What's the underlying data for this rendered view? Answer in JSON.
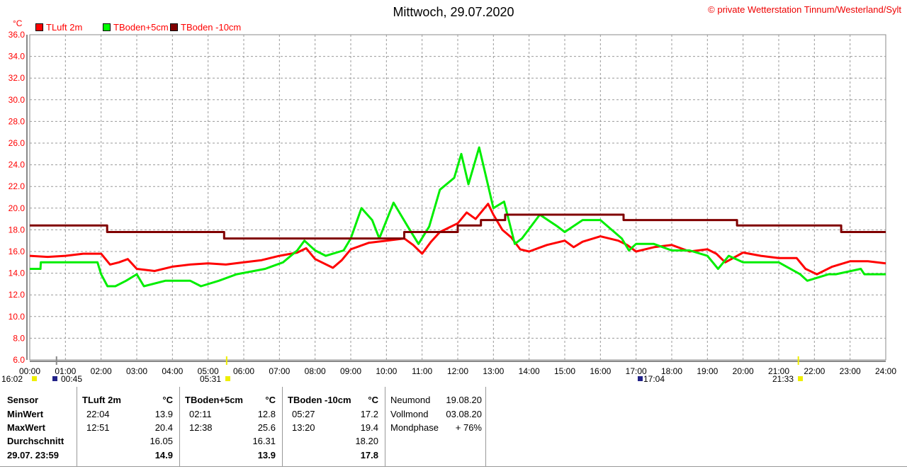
{
  "header": {
    "title": "Mittwoch, 29.07.2020",
    "copyright": "© private Wetterstation Tinnum/Westerland/Sylt",
    "unit": "°C"
  },
  "chart_data": {
    "type": "line",
    "title": "Mittwoch, 29.07.2020",
    "ylabel": "°C",
    "ylim": [
      6,
      36
    ],
    "yticks": [
      "6.0",
      "8.0",
      "10.0",
      "12.0",
      "14.0",
      "16.0",
      "18.0",
      "20.0",
      "22.0",
      "24.0",
      "26.0",
      "28.0",
      "30.0",
      "32.0",
      "34.0",
      "36.0"
    ],
    "xlim": [
      0,
      24
    ],
    "xticks": [
      "00:00",
      "01:00",
      "02:00",
      "03:00",
      "04:00",
      "05:00",
      "06:00",
      "07:00",
      "08:00",
      "09:00",
      "10:00",
      "11:00",
      "12:00",
      "13:00",
      "14:00",
      "15:00",
      "16:00",
      "17:00",
      "18:00",
      "19:00",
      "20:00",
      "21:00",
      "22:00",
      "23:00",
      "24:00"
    ],
    "grid": true,
    "legend": "top-left",
    "series": [
      {
        "name": "TLuft 2m",
        "color": "#ff0000",
        "x": [
          0,
          0.5,
          1,
          1.5,
          2,
          2.25,
          2.5,
          2.75,
          3,
          3.5,
          4,
          4.5,
          5,
          5.5,
          6,
          6.5,
          7,
          7.5,
          7.75,
          8,
          8.5,
          8.75,
          9,
          9.5,
          10,
          10.5,
          10.75,
          11,
          11.25,
          11.5,
          12,
          12.25,
          12.5,
          12.85,
          13,
          13.25,
          13.5,
          13.75,
          14,
          14.5,
          15,
          15.25,
          15.5,
          16,
          16.5,
          16.75,
          17,
          17.5,
          18,
          18.5,
          19,
          19.25,
          19.5,
          20,
          20.5,
          21,
          21.5,
          21.75,
          22.07,
          22.5,
          23,
          23.5,
          24
        ],
        "y": [
          15.6,
          15.5,
          15.6,
          15.8,
          15.8,
          14.8,
          15.0,
          15.3,
          14.4,
          14.2,
          14.6,
          14.8,
          14.9,
          14.8,
          15.0,
          15.2,
          15.6,
          15.9,
          16.3,
          15.3,
          14.5,
          15.2,
          16.2,
          16.8,
          17.0,
          17.2,
          16.6,
          15.8,
          16.9,
          17.8,
          18.6,
          19.6,
          19.0,
          20.4,
          19.4,
          18.0,
          17.3,
          16.2,
          16.0,
          16.6,
          17.0,
          16.4,
          16.9,
          17.4,
          17.0,
          16.6,
          16.0,
          16.4,
          16.6,
          16.0,
          16.2,
          15.8,
          15.0,
          15.9,
          15.6,
          15.4,
          15.4,
          14.4,
          13.9,
          14.6,
          15.1,
          15.1,
          14.9
        ]
      },
      {
        "name": "TBoden+5cm",
        "color": "#00ee00",
        "x": [
          0,
          0.3,
          0.31,
          1.9,
          2.0,
          2.18,
          2.4,
          2.7,
          3.0,
          3.2,
          3.8,
          4.5,
          4.8,
          5.3,
          5.8,
          6.6,
          7.1,
          7.5,
          7.7,
          8.0,
          8.3,
          8.8,
          9.0,
          9.3,
          9.6,
          9.8,
          10.2,
          10.6,
          10.9,
          11.2,
          11.5,
          11.9,
          12.1,
          12.3,
          12.6,
          12.8,
          13.0,
          13.3,
          13.6,
          13.8,
          14.3,
          14.8,
          15.0,
          15.5,
          16.0,
          16.6,
          16.8,
          17.0,
          17.5,
          18.0,
          18.5,
          19.0,
          19.3,
          19.6,
          20.0,
          20.6,
          21.0,
          21.6,
          21.8,
          22.4,
          22.6,
          23.3,
          23.4,
          24
        ],
        "y": [
          14.4,
          14.4,
          15.0,
          15.0,
          13.9,
          12.8,
          12.8,
          13.3,
          13.9,
          12.8,
          13.3,
          13.3,
          12.8,
          13.3,
          13.9,
          14.4,
          15.0,
          16.1,
          17.0,
          16.1,
          15.6,
          16.1,
          17.2,
          20.0,
          18.9,
          17.2,
          20.5,
          18.3,
          16.7,
          18.3,
          21.7,
          22.8,
          25.0,
          22.2,
          25.6,
          22.8,
          20.0,
          20.6,
          16.7,
          17.2,
          19.4,
          18.3,
          17.8,
          18.9,
          18.9,
          17.2,
          16.1,
          16.7,
          16.7,
          16.1,
          16.1,
          15.6,
          14.4,
          15.6,
          15.0,
          15.0,
          15.0,
          13.9,
          13.3,
          13.9,
          13.9,
          14.4,
          13.9,
          13.9
        ]
      },
      {
        "name": "TBoden -10cm",
        "color": "#800000",
        "x": [
          0,
          2.17,
          2.17,
          5.45,
          5.45,
          10.5,
          10.5,
          12.0,
          12.0,
          12.65,
          12.65,
          13.33,
          13.33,
          16.65,
          16.65,
          19.83,
          19.83,
          22.75,
          22.75,
          24
        ],
        "y": [
          18.4,
          18.4,
          17.8,
          17.8,
          17.2,
          17.2,
          17.8,
          17.8,
          18.4,
          18.4,
          18.9,
          18.9,
          19.4,
          19.4,
          18.9,
          18.9,
          18.4,
          18.4,
          17.8,
          17.8
        ]
      }
    ],
    "annotations": [
      {
        "label": "16:02",
        "icon": "moonset"
      },
      {
        "label": "00:45",
        "icon": "moonrise"
      },
      {
        "label": "05:31",
        "icon": "sunrise"
      },
      {
        "label": "17:04",
        "icon": "moonphase"
      },
      {
        "label": "21:33",
        "icon": "sunset"
      }
    ]
  },
  "table": {
    "headers": [
      "Sensor",
      "TLuft 2m",
      "°C",
      "TBoden+5cm",
      "°C",
      "TBoden -10cm",
      "°C"
    ],
    "rows": [
      {
        "label": "MinWert",
        "v": [
          [
            "22:04",
            "13.9"
          ],
          [
            "02:11",
            "12.8"
          ],
          [
            "05:27",
            "17.2"
          ]
        ]
      },
      {
        "label": "MaxWert",
        "v": [
          [
            "12:51",
            "20.4"
          ],
          [
            "12:38",
            "25.6"
          ],
          [
            "13:20",
            "19.4"
          ]
        ]
      },
      {
        "label": "Durchschnitt",
        "v": [
          [
            "",
            "16.05"
          ],
          [
            "",
            "16.31"
          ],
          [
            "",
            "18.20"
          ]
        ]
      },
      {
        "label": "29.07. 23:59",
        "v": [
          [
            "",
            "14.9"
          ],
          [
            "",
            "13.9"
          ],
          [
            "",
            "17.8"
          ]
        ]
      }
    ],
    "moon": [
      [
        "Neumond",
        "19.08.20"
      ],
      [
        "Vollmond",
        "03.08.20"
      ],
      [
        "Mondphase",
        "+ 76%"
      ]
    ]
  }
}
